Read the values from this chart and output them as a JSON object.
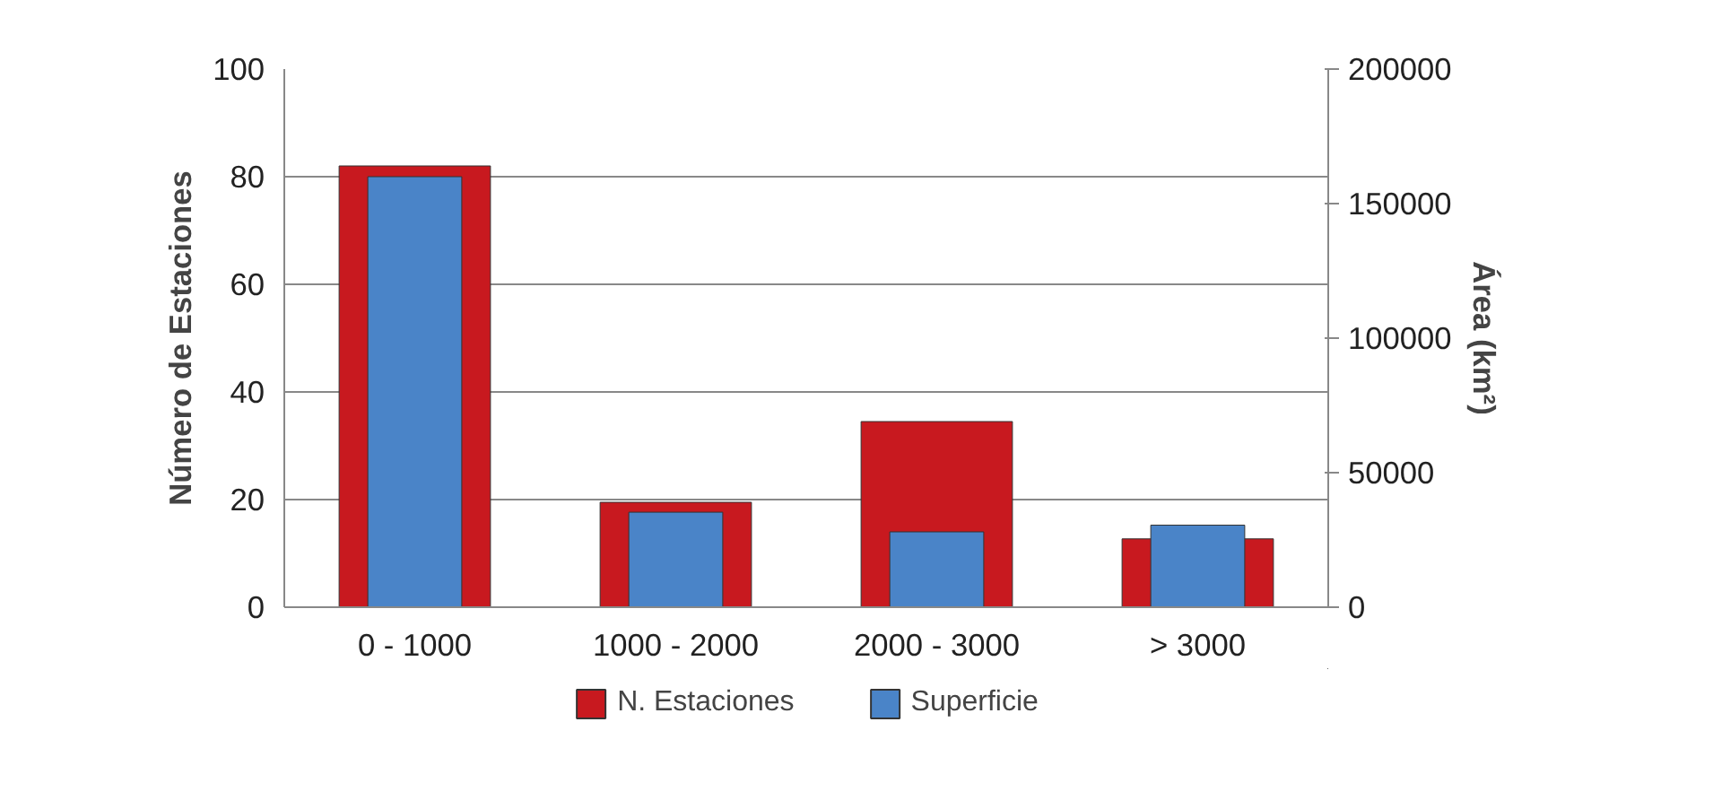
{
  "chart_data": {
    "type": "bar",
    "categories": [
      "0 - 1000",
      "1000 - 2000",
      "2000 - 3000",
      "> 3000"
    ],
    "series": [
      {
        "name": "N. Estaciones",
        "color": "#c8191f",
        "values": [
          82,
          19.5,
          34.5,
          12.7
        ]
      },
      {
        "name": "Superficie",
        "color": "#4a84c8",
        "values": [
          160000,
          35300,
          28000,
          30500
        ],
        "axis": "y2"
      }
    ],
    "ylabel": "Número de Estaciones",
    "y2label": "Área (km²)",
    "ylim": [
      0,
      100
    ],
    "yticks": [
      0,
      20,
      40,
      60,
      80,
      100
    ],
    "y2lim": [
      0,
      200000
    ],
    "y2ticks": [
      0,
      50000,
      100000,
      150000,
      200000
    ],
    "grid": "y",
    "legend": "bottom"
  }
}
